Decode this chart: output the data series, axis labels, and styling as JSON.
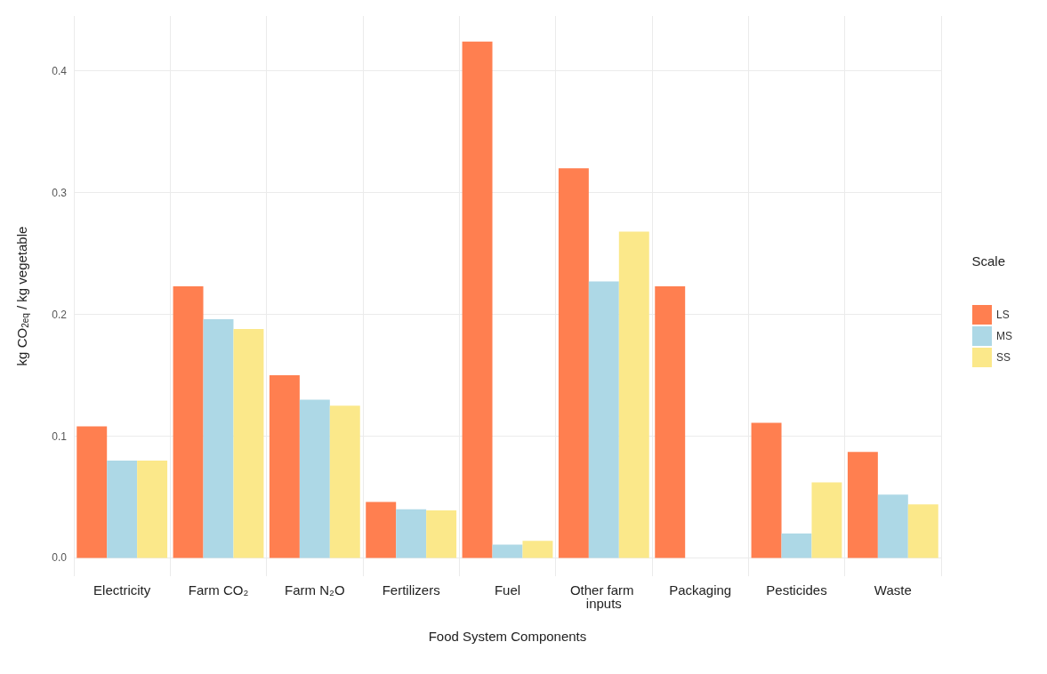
{
  "chart_data": {
    "type": "bar",
    "categories": [
      "Electricity",
      "Farm CO₂",
      "Farm N₂O",
      "Fertilizers",
      "Fuel",
      "Other farm inputs",
      "Packaging",
      "Pesticides",
      "Waste"
    ],
    "series": [
      {
        "name": "LS",
        "color": "#ff7f50",
        "values": [
          0.108,
          0.223,
          0.15,
          0.046,
          0.424,
          0.32,
          0.223,
          0.111,
          0.087
        ]
      },
      {
        "name": "MS",
        "color": "#add8e6",
        "values": [
          0.08,
          0.196,
          0.13,
          0.04,
          0.011,
          0.227,
          null,
          0.02,
          0.052
        ]
      },
      {
        "name": "SS",
        "color": "#fbe88a",
        "values": [
          0.08,
          0.188,
          0.125,
          0.039,
          0.014,
          0.268,
          null,
          0.062,
          0.044
        ]
      }
    ],
    "xlabel": "Food System Components",
    "ylabel": "kg CO$_{2eq}$ / kg vegetable",
    "legend_title": "Scale",
    "ylim": [
      -0.015,
      0.445
    ],
    "yticks": [
      {
        "value": 0,
        "label": "0.0"
      },
      {
        "value": 0.1,
        "label": "0.1"
      },
      {
        "value": 0.2,
        "label": "0.2"
      },
      {
        "value": 0.3,
        "label": "0.3"
      },
      {
        "value": 0.4,
        "label": "0.4"
      }
    ],
    "grid": true,
    "legend": "right"
  }
}
